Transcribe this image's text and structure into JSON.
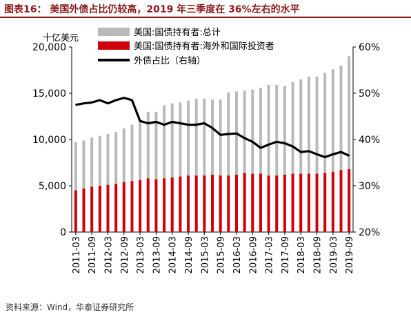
{
  "title": "图表16： 美国外债占比仍较高，2019 年三季度在 36%左右的水平",
  "source": "资料来源：Wind，华泰证券研究所",
  "colors": {
    "title": "#8b1a1a",
    "total": "#b9b9b9",
    "foreign": "#d0000b",
    "line": "#000000"
  },
  "chart_data": {
    "type": "bar",
    "ylabel": "十亿美元",
    "ylim": [
      0,
      20000
    ],
    "y2lim": [
      0.2,
      0.6
    ],
    "yticks": [
      "0",
      "5,000",
      "10,000",
      "15,000",
      "20,000"
    ],
    "y2ticks": [
      "20%",
      "30%",
      "40%",
      "50%",
      "60%"
    ],
    "categories": [
      "2011-03",
      "2011-06",
      "2011-09",
      "2011-12",
      "2012-03",
      "2012-06",
      "2012-09",
      "2012-12",
      "2013-03",
      "2013-06",
      "2013-09",
      "2013-12",
      "2014-03",
      "2014-06",
      "2014-09",
      "2014-12",
      "2015-03",
      "2015-06",
      "2015-09",
      "2015-12",
      "2016-03",
      "2016-06",
      "2016-09",
      "2016-12",
      "2017-03",
      "2017-06",
      "2017-09",
      "2017-12",
      "2018-03",
      "2018-06",
      "2018-09",
      "2018-12",
      "2019-03",
      "2019-06",
      "2019-09"
    ],
    "xtick_labels": [
      "2011-03",
      "2011-09",
      "2012-03",
      "2012-09",
      "2013-03",
      "2013-09",
      "2014-03",
      "2014-09",
      "2015-03",
      "2015-09",
      "2016-03",
      "2016-09",
      "2017-03",
      "2017-09",
      "2018-03",
      "2018-09",
      "2019-03",
      "2019-09"
    ],
    "legend": "top-left",
    "series": [
      {
        "name": "美国:国债持有者:总计",
        "axis": "left",
        "kind": "bar",
        "values": [
          9700,
          9900,
          10200,
          10400,
          10600,
          10800,
          11200,
          11600,
          12000,
          13000,
          13000,
          13700,
          13900,
          14000,
          14200,
          14400,
          14400,
          14300,
          14300,
          15100,
          15200,
          15300,
          15400,
          15600,
          15900,
          15900,
          15800,
          16200,
          16500,
          16800,
          16800,
          17200,
          17600,
          18000,
          19000
        ]
      },
      {
        "name": "美国:国债持有者:海外和国际投资者",
        "axis": "left",
        "kind": "bar",
        "values": [
          4500,
          4700,
          4900,
          5000,
          5100,
          5200,
          5400,
          5500,
          5600,
          5800,
          5700,
          5800,
          5900,
          6000,
          6100,
          6100,
          6100,
          6200,
          6100,
          6100,
          6200,
          6400,
          6300,
          6300,
          6100,
          6100,
          6200,
          6300,
          6300,
          6300,
          6300,
          6400,
          6500,
          6700,
          6800
        ]
      },
      {
        "name": "外债占比（右轴）",
        "axis": "right",
        "kind": "line",
        "values": [
          0.475,
          0.478,
          0.48,
          0.485,
          0.478,
          0.485,
          0.49,
          0.485,
          0.44,
          0.435,
          0.438,
          0.432,
          0.438,
          0.435,
          0.432,
          0.432,
          0.435,
          0.425,
          0.41,
          0.412,
          0.413,
          0.403,
          0.395,
          0.382,
          0.389,
          0.395,
          0.392,
          0.385,
          0.373,
          0.375,
          0.368,
          0.362,
          0.368,
          0.373,
          0.365
        ]
      }
    ]
  }
}
